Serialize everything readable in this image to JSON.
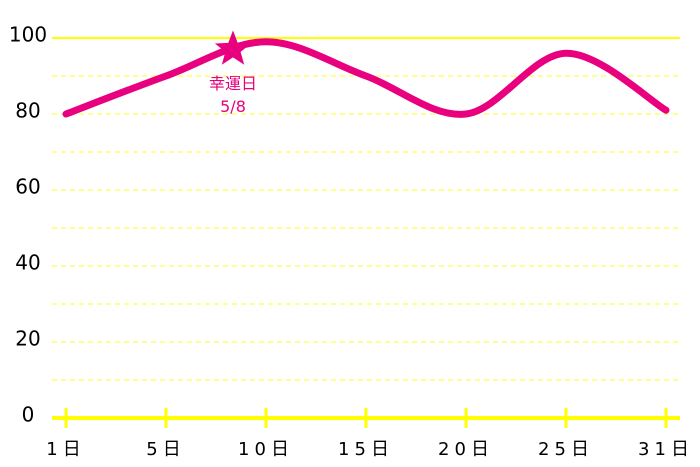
{
  "chart_data": {
    "type": "line",
    "categories": [
      "1日",
      "5日",
      "10日",
      "15日",
      "20日",
      "25日",
      "31日"
    ],
    "series": [
      {
        "color": "#e8007f",
        "values": [
          80,
          90,
          99,
          90,
          80,
          96,
          81
        ]
      }
    ],
    "ylim": [
      0,
      100
    ],
    "yticks": [
      0,
      20,
      40,
      60,
      80,
      100
    ],
    "minor_yticks": [
      10,
      30,
      50,
      70,
      90
    ],
    "grid": true,
    "grid_color": "#ffff66",
    "axis_color": "#ffff00",
    "annotation": {
      "label": "幸運日",
      "date": "5/8",
      "value": 97
    }
  }
}
